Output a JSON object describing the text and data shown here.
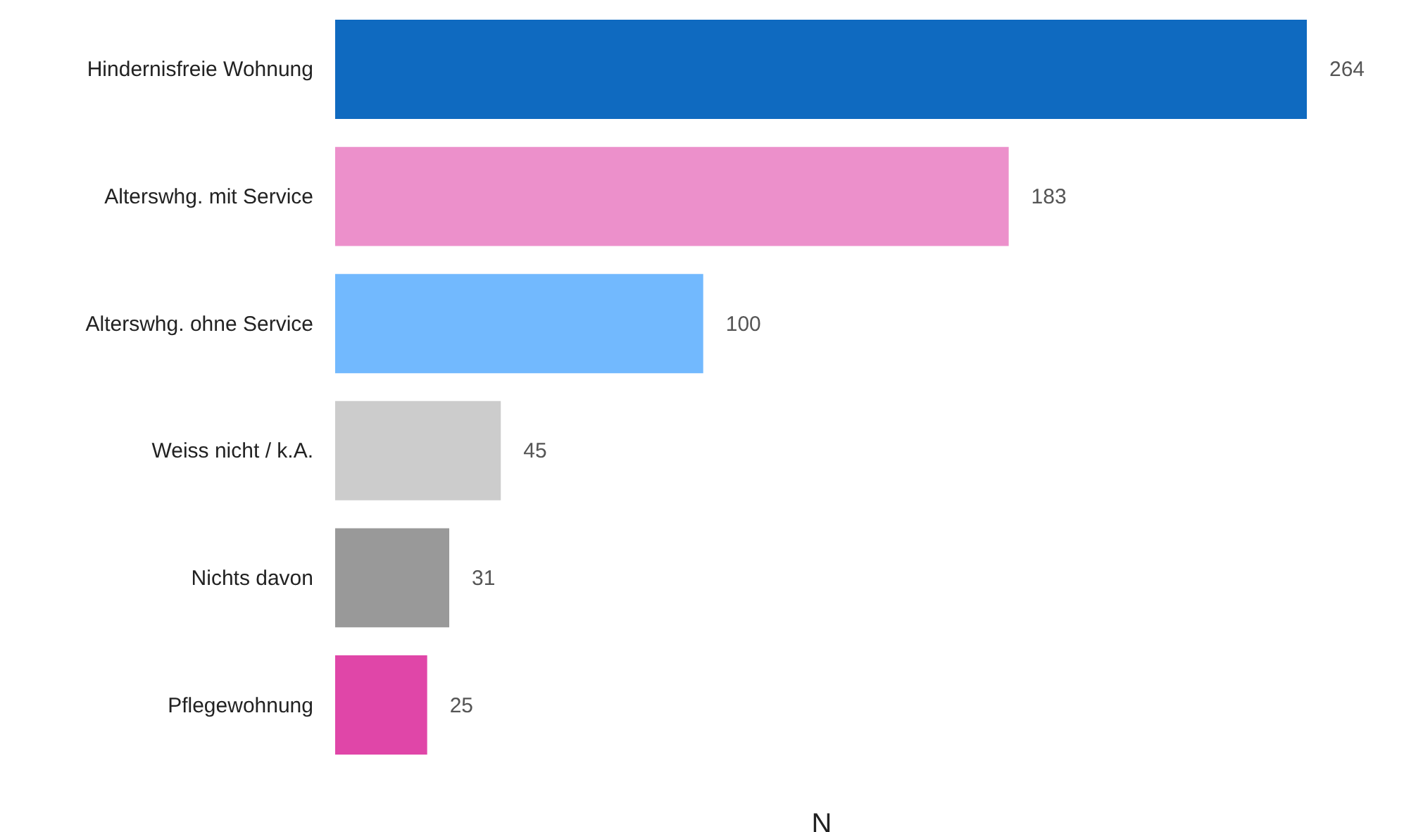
{
  "chart_data": {
    "type": "bar",
    "orientation": "horizontal",
    "xlabel": "N",
    "categories": [
      "Hindernisfreie Wohnung",
      "Alterswhg. mit Service",
      "Alterswhg. ohne Service",
      "Weiss nicht / k.A.",
      "Nichts davon",
      "Pflegewohnung"
    ],
    "values": [
      264,
      183,
      100,
      45,
      31,
      25
    ],
    "colors": [
      "#0f6ac0",
      "#ec90cb",
      "#72b9fe",
      "#cccccc",
      "#999999",
      "#e046a8"
    ],
    "data_labels": true,
    "tick_labels": "y",
    "grid": false
  }
}
